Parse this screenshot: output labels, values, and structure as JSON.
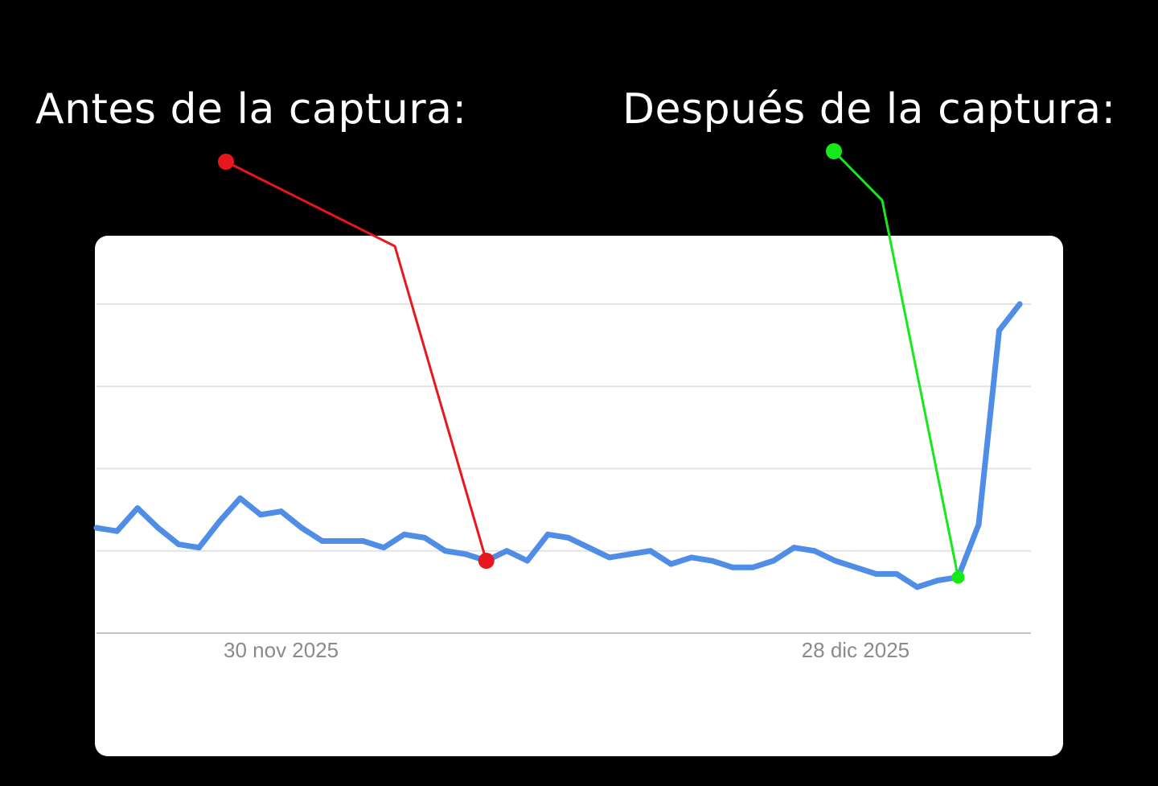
{
  "captions": {
    "before": "Antes de la captura:",
    "after": "Después de la captura:"
  },
  "colors": {
    "background": "#000000",
    "card": "#ffffff",
    "series": "#4f8de6",
    "gridline": "#e3e3e3",
    "axis": "#c4c4c4",
    "tick_text": "#8a8a8a",
    "before_marker": "#e8161d",
    "after_marker": "#16e81a"
  },
  "chart_data": {
    "type": "line",
    "x_tick_labels": [
      "30 nov 2025",
      "28 dic 2025"
    ],
    "x_tick_index": [
      9,
      37
    ],
    "ylim": [
      0,
      100
    ],
    "grid": true,
    "gridlines_y": [
      25,
      50,
      75,
      100
    ],
    "series": [
      {
        "values": [
          32,
          31,
          38,
          32,
          27,
          26,
          34,
          41,
          36,
          37,
          32,
          28,
          28,
          28,
          26,
          30,
          29,
          25,
          24,
          22,
          25,
          22,
          30,
          29,
          26,
          23,
          24,
          25,
          21,
          23,
          22,
          20,
          20,
          22,
          26,
          25,
          22,
          20,
          18,
          18,
          14,
          16,
          17,
          33,
          92,
          100
        ]
      }
    ],
    "annotations": [
      {
        "label_ref": "captions.before",
        "point_index": 19,
        "color": "#e8161d"
      },
      {
        "label_ref": "captions.after",
        "point_index": 42,
        "color": "#16e81a"
      }
    ]
  }
}
